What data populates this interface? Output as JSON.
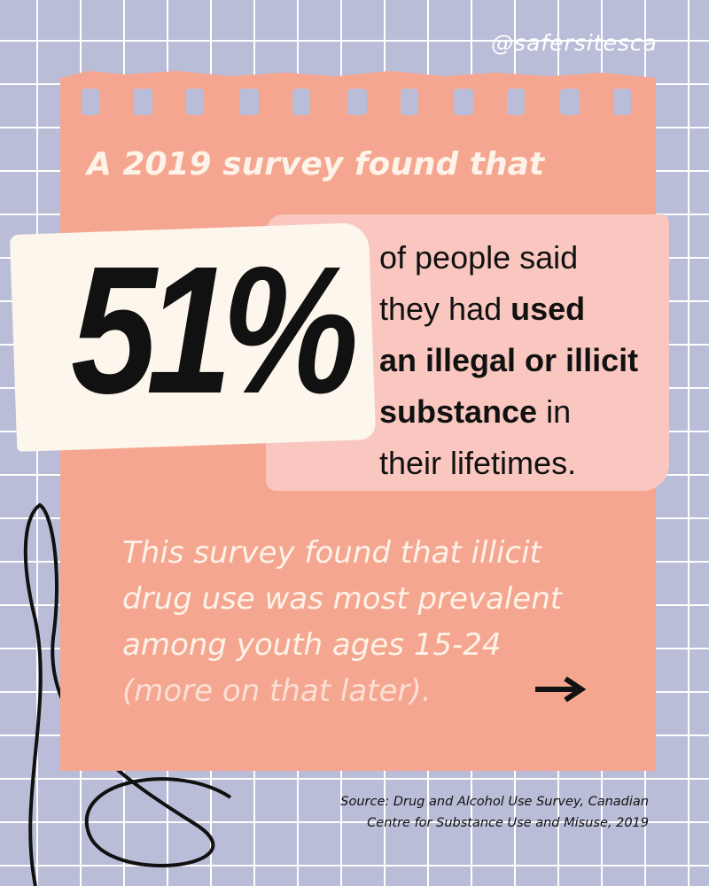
{
  "handle": "@safersitesca",
  "heading": "A 2019 survey found that",
  "stat": "51%",
  "statement": [
    [
      {
        "text": "of people said",
        "bold": false
      }
    ],
    [
      {
        "text": "they had ",
        "bold": false
      },
      {
        "text": "used",
        "bold": true
      }
    ],
    [
      {
        "text": "an illegal or illicit",
        "bold": true
      }
    ],
    [
      {
        "text": "substance",
        "bold": true
      },
      {
        "text": " in",
        "bold": false
      }
    ],
    [
      {
        "text": "their lifetimes.",
        "bold": false
      }
    ]
  ],
  "body": [
    "This survey found that illicit",
    "drug use was most prevalent",
    "among youth ages 15-24"
  ],
  "note": "(more on that later).",
  "source": [
    "Source: Drug and Alcohol Use Survey, Canadian",
    "Centre for Substance Use and Misuse, 2019"
  ]
}
